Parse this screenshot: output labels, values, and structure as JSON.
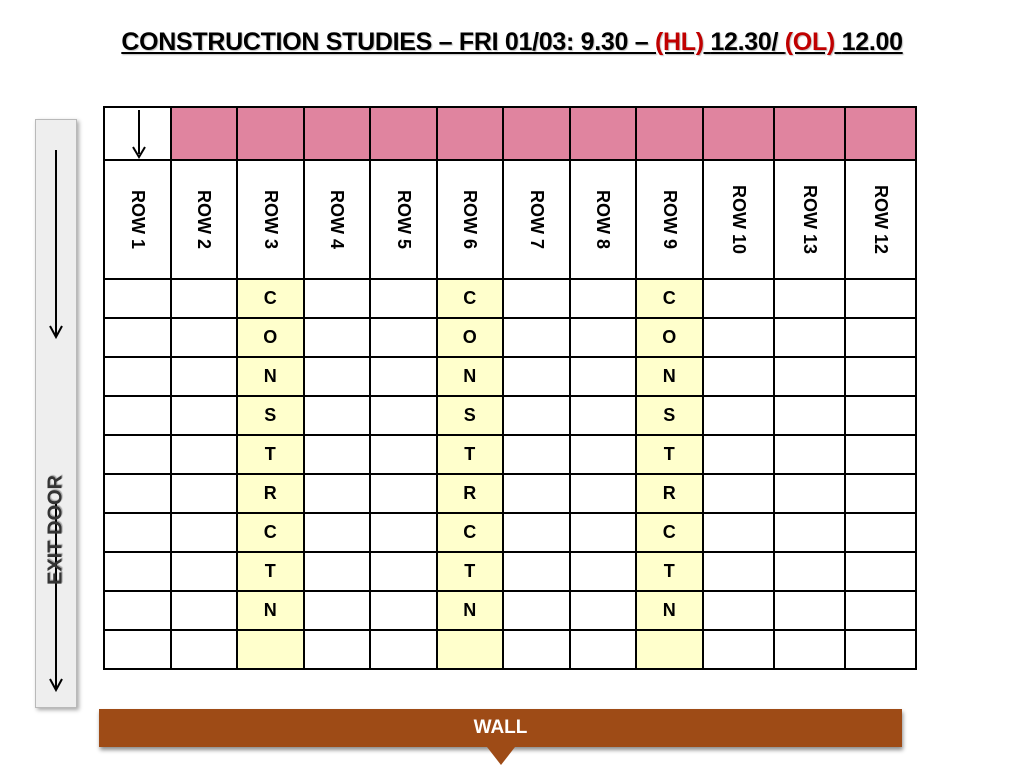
{
  "title": {
    "part1": "CONSTRUCTION STUDIES – FRI 01/03: 9.30 – ",
    "hl": "(HL) ",
    "part2": "12.30/ ",
    "ol": "(OL) ",
    "part3": "12.00"
  },
  "exit_door": {
    "label": "EXIT DOOR",
    "arrow_icon": "arrow-down-icon"
  },
  "wall": {
    "label": "WALL"
  },
  "colors": {
    "header_pink": "#e0849f",
    "highlight_yellow": "#ffffcc",
    "wall_brown": "#9e4b16",
    "title_red": "#c00000"
  },
  "columns": [
    {
      "label": "ROW 1",
      "letters": [
        "",
        "",
        "",
        "",
        "",
        "",
        "",
        "",
        "",
        ""
      ]
    },
    {
      "label": "ROW 2",
      "letters": [
        "",
        "",
        "",
        "",
        "",
        "",
        "",
        "",
        "",
        ""
      ]
    },
    {
      "label": "ROW 3",
      "letters": [
        "C",
        "O",
        "N",
        "S",
        "T",
        "R",
        "C",
        "T",
        "N",
        ""
      ]
    },
    {
      "label": "ROW 4",
      "letters": [
        "",
        "",
        "",
        "",
        "",
        "",
        "",
        "",
        "",
        ""
      ]
    },
    {
      "label": "ROW 5",
      "letters": [
        "",
        "",
        "",
        "",
        "",
        "",
        "",
        "",
        "",
        ""
      ]
    },
    {
      "label": "ROW 6",
      "letters": [
        "C",
        "O",
        "N",
        "S",
        "T",
        "R",
        "C",
        "T",
        "N",
        ""
      ]
    },
    {
      "label": "ROW 7",
      "letters": [
        "",
        "",
        "",
        "",
        "",
        "",
        "",
        "",
        "",
        ""
      ]
    },
    {
      "label": "ROW 8",
      "letters": [
        "",
        "",
        "",
        "",
        "",
        "",
        "",
        "",
        "",
        ""
      ]
    },
    {
      "label": "ROW 9",
      "letters": [
        "C",
        "O",
        "N",
        "S",
        "T",
        "R",
        "C",
        "T",
        "N",
        ""
      ]
    },
    {
      "label": "ROW 10",
      "letters": [
        "",
        "",
        "",
        "",
        "",
        "",
        "",
        "",
        "",
        ""
      ]
    },
    {
      "label": "ROW 13",
      "letters": [
        "",
        "",
        "",
        "",
        "",
        "",
        "",
        "",
        "",
        ""
      ]
    },
    {
      "label": "ROW 12",
      "letters": [
        "",
        "",
        "",
        "",
        "",
        "",
        "",
        "",
        "",
        ""
      ]
    }
  ],
  "highlighted_columns": [
    2,
    5,
    8
  ]
}
